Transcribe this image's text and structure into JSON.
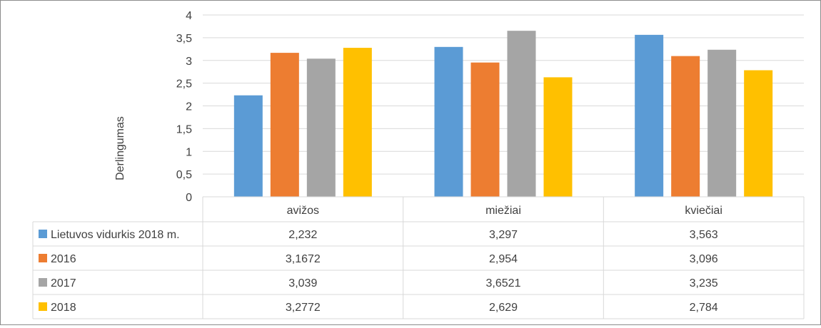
{
  "chart_data": {
    "type": "bar",
    "ylabel": "Derlingumas",
    "ylim": [
      0,
      4
    ],
    "yticks": [
      "0",
      "0,5",
      "1",
      "1,5",
      "2",
      "2,5",
      "3",
      "3,5",
      "4"
    ],
    "categories": [
      "avižos",
      "miežiai",
      "kviečiai"
    ],
    "grid": true,
    "legend": "data-table",
    "series": [
      {
        "name": "Lietuvos vidurkis 2018 m.",
        "color": "#5B9BD5",
        "values": [
          2.232,
          3.297,
          3.563
        ],
        "labels": [
          "2,232",
          "3,297",
          "3,563"
        ]
      },
      {
        "name": "2016",
        "color": "#ED7D31",
        "values": [
          3.1672,
          2.954,
          3.096
        ],
        "labels": [
          "3,1672",
          "2,954",
          "3,096"
        ]
      },
      {
        "name": "2017",
        "color": "#A5A5A5",
        "values": [
          3.039,
          3.6521,
          3.235
        ],
        "labels": [
          "3,039",
          "3,6521",
          "3,235"
        ]
      },
      {
        "name": "2018",
        "color": "#FFC000",
        "values": [
          3.2772,
          2.629,
          2.784
        ],
        "labels": [
          "3,2772",
          "2,629",
          "2,784"
        ]
      }
    ]
  }
}
